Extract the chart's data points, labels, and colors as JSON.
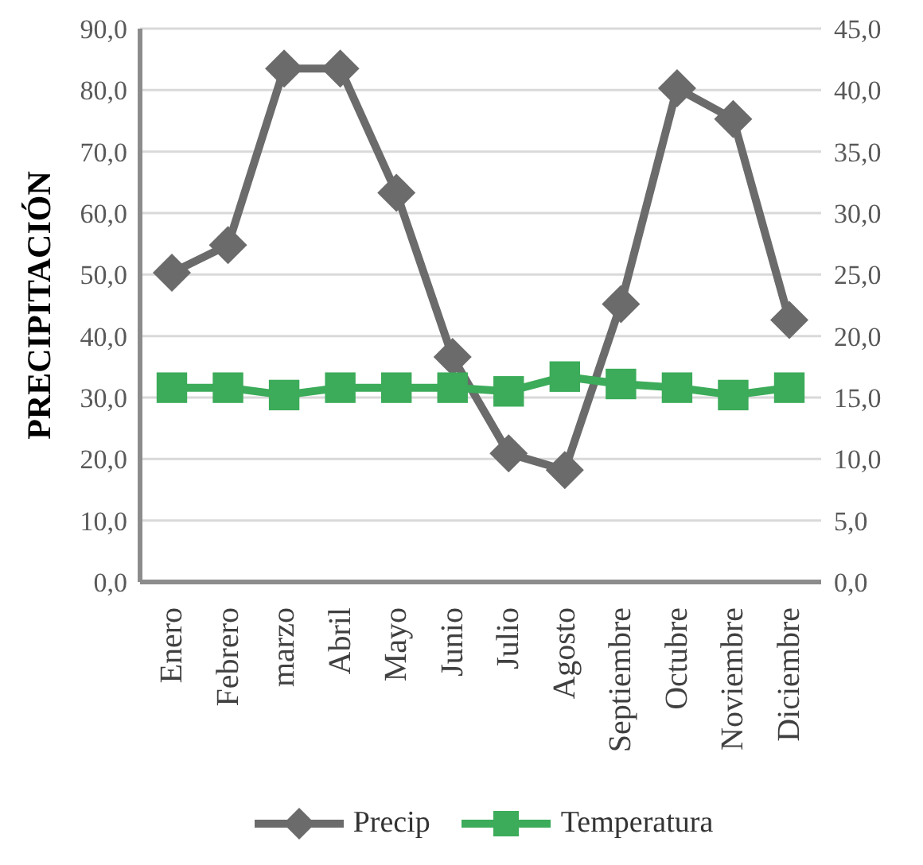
{
  "chart_data": {
    "type": "line",
    "ylabel": "PRECIPITACIÓN",
    "categories": [
      "Enero",
      "Febrero",
      "marzo",
      "Abril",
      "Mayo",
      "Junio",
      "Julio",
      "Agosto",
      "Septiembre",
      "Octubre",
      "Noviembre",
      "Diciembre"
    ],
    "series": [
      {
        "name": "Precip",
        "color": "#6b6b6b",
        "marker": "diamond",
        "values": [
          50.3,
          54.8,
          83.5,
          83.5,
          63.3,
          36.6,
          20.9,
          18.2,
          45.2,
          80.3,
          75.3,
          42.6
        ]
      },
      {
        "name": "Temperatura",
        "color": "#3cab5a",
        "marker": "square",
        "axis": "y2",
        "values": [
          15.8,
          15.8,
          15.2,
          15.8,
          15.8,
          15.8,
          15.5,
          16.7,
          16.1,
          15.8,
          15.2,
          15.8
        ]
      }
    ],
    "ylim": [
      0,
      90
    ],
    "yticks": [
      {
        "value": 0,
        "label": "0,0"
      },
      {
        "value": 10,
        "label": "10,0"
      },
      {
        "value": 20,
        "label": "20,0"
      },
      {
        "value": 30,
        "label": "30,0"
      },
      {
        "value": 40,
        "label": "40,0"
      },
      {
        "value": 50,
        "label": "50,0"
      },
      {
        "value": 60,
        "label": "60,0"
      },
      {
        "value": 70,
        "label": "70,0"
      },
      {
        "value": 80,
        "label": "80,0"
      },
      {
        "value": 90,
        "label": "90,0"
      }
    ],
    "y2lim": [
      0,
      45
    ],
    "y2ticks": [
      {
        "value": 0,
        "label": "0,0"
      },
      {
        "value": 5,
        "label": "5,0"
      },
      {
        "value": 10,
        "label": "10,0"
      },
      {
        "value": 15,
        "label": "15,0"
      },
      {
        "value": 20,
        "label": "20,0"
      },
      {
        "value": 25,
        "label": "25,0"
      },
      {
        "value": 30,
        "label": "30,0"
      },
      {
        "value": 35,
        "label": "35,0"
      },
      {
        "value": 40,
        "label": "40,0"
      },
      {
        "value": 45,
        "label": "45,0"
      }
    ],
    "grid": "y",
    "legend": "bottom"
  }
}
